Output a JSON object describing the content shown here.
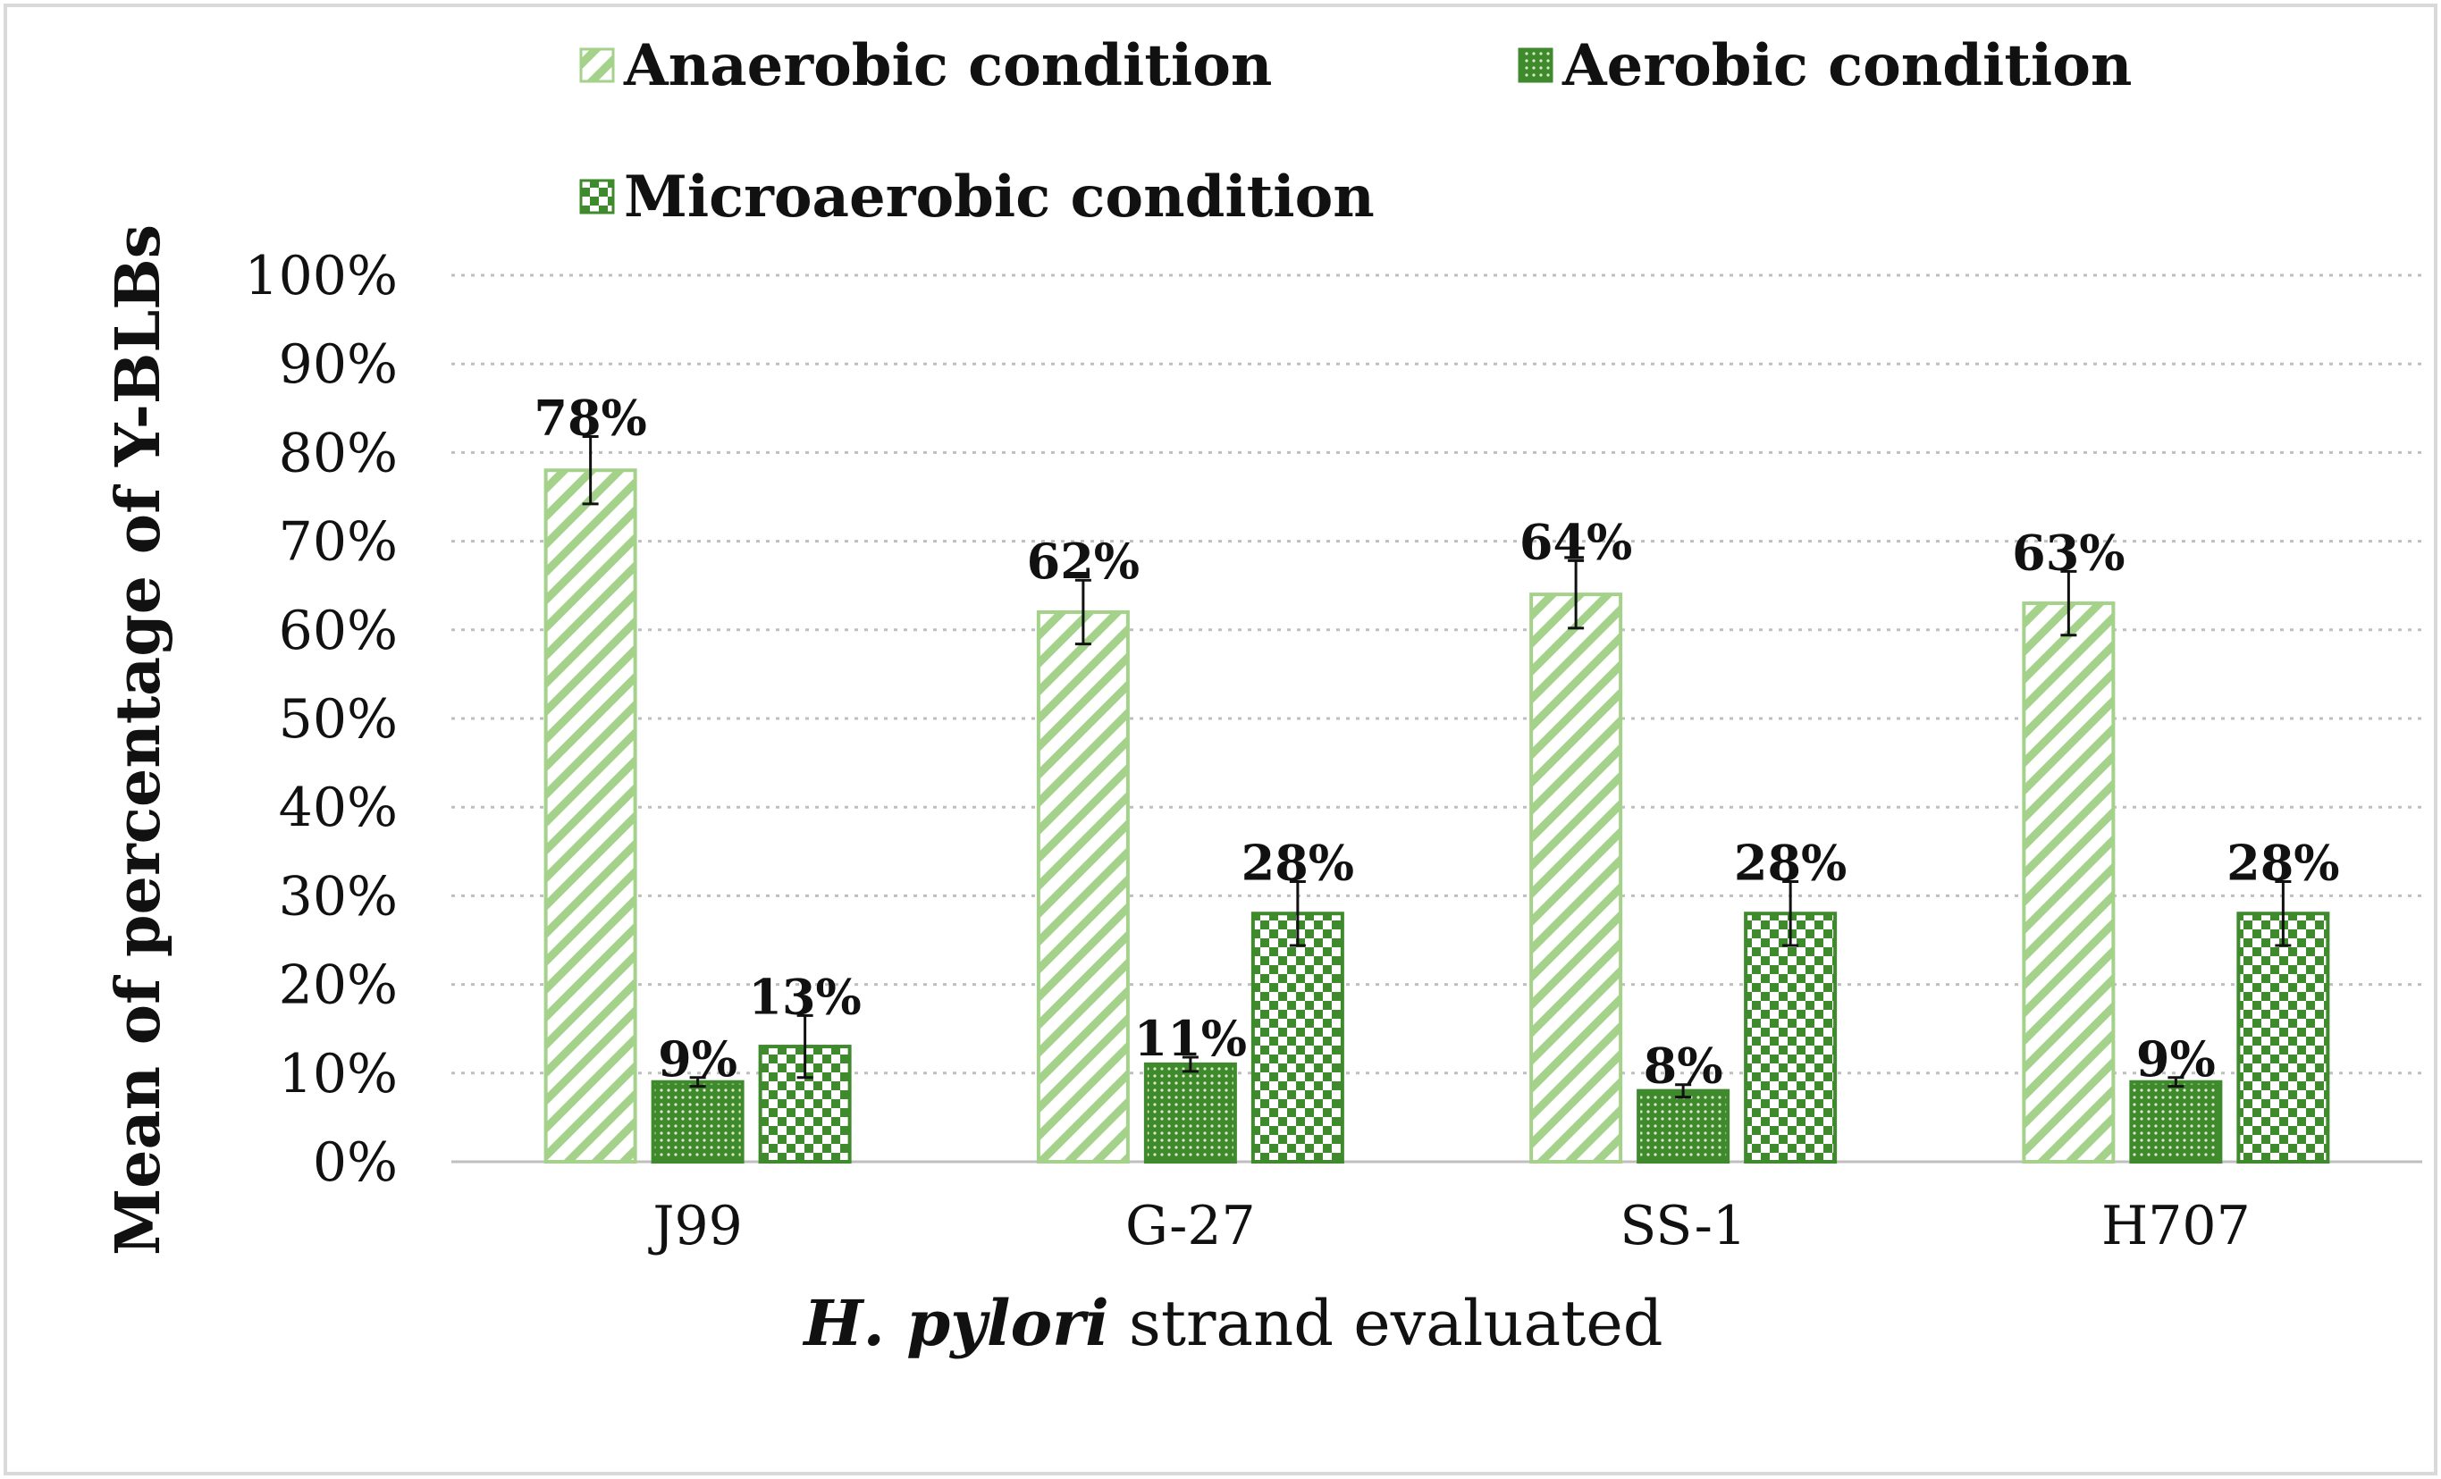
{
  "chart_data": {
    "type": "bar",
    "title": "",
    "xlabel_italic": "H. pylori",
    "xlabel_rest": " strand evaluated",
    "ylabel": "Mean of percentage of Y-BLBs",
    "ylim": [
      0,
      100
    ],
    "ytick_values": [
      0,
      10,
      20,
      30,
      40,
      50,
      60,
      70,
      80,
      90,
      100
    ],
    "ytick_labels": [
      "0%",
      "10%",
      "20%",
      "30%",
      "40%",
      "50%",
      "60%",
      "70%",
      "80%",
      "90%",
      "100%"
    ],
    "grid": "horizontal dotted",
    "categories": [
      "J99",
      "G-27",
      "SS-1",
      "H707"
    ],
    "series": [
      {
        "name": "Anaerobic condition",
        "pattern": "diagonal-stripes",
        "values": [
          78,
          62,
          64,
          63
        ],
        "labels": [
          "78%",
          "62%",
          "64%",
          "63%"
        ],
        "errors": [
          3.8,
          3.6,
          3.8,
          3.6
        ]
      },
      {
        "name": "Aerobic condition",
        "pattern": "fine-dots",
        "values": [
          9,
          11,
          8,
          9
        ],
        "labels": [
          "9%",
          "11%",
          "8%",
          "9%"
        ],
        "errors": [
          0.5,
          0.8,
          0.7,
          0.5
        ]
      },
      {
        "name": "Microaerobic condition",
        "pattern": "checkerboard",
        "values": [
          13,
          28,
          28,
          28
        ],
        "labels": [
          "13%",
          "28%",
          "28%",
          "28%"
        ],
        "errors": [
          3.5,
          3.6,
          3.6,
          3.6
        ]
      }
    ],
    "legend_position": "top"
  },
  "colors": {
    "dark_green": "#3f8a2c",
    "light_green": "#a4d28a",
    "grid": "#bfbfbf",
    "border": "#d9d9d9"
  }
}
